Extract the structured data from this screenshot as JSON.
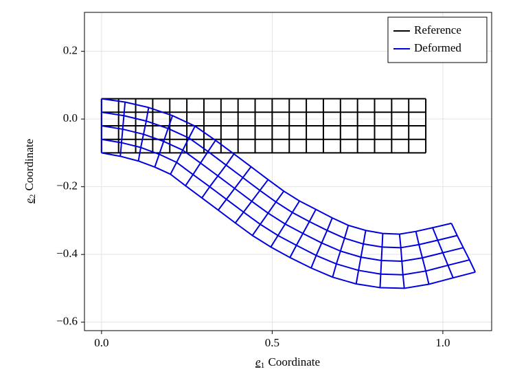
{
  "chart_data": {
    "type": "mesh",
    "x_label": {
      "symbol": "e",
      "subscript": "1",
      "text": "Coordinate"
    },
    "y_label": {
      "symbol": "e",
      "subscript": "2",
      "text": "Coordinate"
    },
    "xlim": [
      -0.05,
      1.143
    ],
    "ylim": [
      -0.625,
      0.315
    ],
    "xticks": [
      {
        "value": 0,
        "label": "0.0"
      },
      {
        "value": 0.5,
        "label": "0.5"
      },
      {
        "value": 1,
        "label": "1.0"
      }
    ],
    "yticks": [
      {
        "value": -0.6,
        "label": "−0.6"
      },
      {
        "value": -0.4,
        "label": "−0.4"
      },
      {
        "value": -0.2,
        "label": "−0.2"
      },
      {
        "value": 0,
        "label": "0.0"
      },
      {
        "value": 0.2,
        "label": "0.2"
      }
    ],
    "grid": true,
    "legend": "top-right",
    "series": [
      {
        "name": "Reference",
        "color": "#000000",
        "rows": [
          {
            "x": [
              0,
              0.05,
              0.1,
              0.15,
              0.2,
              0.25,
              0.3,
              0.35,
              0.4,
              0.45,
              0.5,
              0.55,
              0.6,
              0.65,
              0.7,
              0.75,
              0.8,
              0.85,
              0.9,
              0.95
            ],
            "y": [
              0.06,
              0.06,
              0.06,
              0.06,
              0.06,
              0.06,
              0.06,
              0.06,
              0.06,
              0.06,
              0.06,
              0.06,
              0.06,
              0.06,
              0.06,
              0.06,
              0.06,
              0.06,
              0.06,
              0.06
            ]
          },
          {
            "x": [
              0,
              0.05,
              0.1,
              0.15,
              0.2,
              0.25,
              0.3,
              0.35,
              0.4,
              0.45,
              0.5,
              0.55,
              0.6,
              0.65,
              0.7,
              0.75,
              0.8,
              0.85,
              0.9,
              0.95
            ],
            "y": [
              0.02,
              0.02,
              0.02,
              0.02,
              0.02,
              0.02,
              0.02,
              0.02,
              0.02,
              0.02,
              0.02,
              0.02,
              0.02,
              0.02,
              0.02,
              0.02,
              0.02,
              0.02,
              0.02,
              0.02
            ]
          },
          {
            "x": [
              0,
              0.05,
              0.1,
              0.15,
              0.2,
              0.25,
              0.3,
              0.35,
              0.4,
              0.45,
              0.5,
              0.55,
              0.6,
              0.65,
              0.7,
              0.75,
              0.8,
              0.85,
              0.9,
              0.95
            ],
            "y": [
              -0.02,
              -0.02,
              -0.02,
              -0.02,
              -0.02,
              -0.02,
              -0.02,
              -0.02,
              -0.02,
              -0.02,
              -0.02,
              -0.02,
              -0.02,
              -0.02,
              -0.02,
              -0.02,
              -0.02,
              -0.02,
              -0.02,
              -0.02
            ]
          },
          {
            "x": [
              0,
              0.05,
              0.1,
              0.15,
              0.2,
              0.25,
              0.3,
              0.35,
              0.4,
              0.45,
              0.5,
              0.55,
              0.6,
              0.65,
              0.7,
              0.75,
              0.8,
              0.85,
              0.9,
              0.95
            ],
            "y": [
              -0.06,
              -0.06,
              -0.06,
              -0.06,
              -0.06,
              -0.06,
              -0.06,
              -0.06,
              -0.06,
              -0.06,
              -0.06,
              -0.06,
              -0.06,
              -0.06,
              -0.06,
              -0.06,
              -0.06,
              -0.06,
              -0.06,
              -0.06
            ]
          },
          {
            "x": [
              0,
              0.05,
              0.1,
              0.15,
              0.2,
              0.25,
              0.3,
              0.35,
              0.4,
              0.45,
              0.5,
              0.55,
              0.6,
              0.65,
              0.7,
              0.75,
              0.8,
              0.85,
              0.9,
              0.95
            ],
            "y": [
              -0.1,
              -0.1,
              -0.1,
              -0.1,
              -0.1,
              -0.1,
              -0.1,
              -0.1,
              -0.1,
              -0.1,
              -0.1,
              -0.1,
              -0.1,
              -0.1,
              -0.1,
              -0.1,
              -0.1,
              -0.1,
              -0.1,
              -0.1
            ]
          }
        ]
      },
      {
        "name": "Deformed",
        "color": "#0000dd",
        "rows": [
          {
            "x": [
              0,
              0.069,
              0.138,
              0.208,
              0.274,
              0.334,
              0.388,
              0.438,
              0.488,
              0.534,
              0.58,
              0.628,
              0.676,
              0.723,
              0.774,
              0.824,
              0.873,
              0.921,
              0.97,
              1.025
            ],
            "y": [
              0.06,
              0.05,
              0.034,
              0.01,
              -0.021,
              -0.063,
              -0.103,
              -0.141,
              -0.179,
              -0.213,
              -0.242,
              -0.267,
              -0.292,
              -0.314,
              -0.329,
              -0.338,
              -0.34,
              -0.332,
              -0.321,
              -0.308
            ]
          },
          {
            "x": [
              0,
              0.0655,
              0.131,
              0.195,
              0.256,
              0.312,
              0.365,
              0.414,
              0.464,
              0.511,
              0.559,
              0.609,
              0.661,
              0.712,
              0.767,
              0.822,
              0.877,
              0.93,
              0.985,
              1.042
            ],
            "y": [
              0.02,
              0.0099,
              -0.006,
              -0.028,
              -0.056,
              -0.096,
              -0.136,
              -0.173,
              -0.211,
              -0.245,
              -0.276,
              -0.303,
              -0.329,
              -0.352,
              -0.369,
              -0.378,
              -0.38,
              -0.371,
              -0.358,
              -0.344
            ]
          },
          {
            "x": [
              0,
              0.062,
              0.123,
              0.182,
              0.238,
              0.29,
              0.341,
              0.39,
              0.44,
              0.488,
              0.538,
              0.59,
              0.645,
              0.7,
              0.76,
              0.82,
              0.88,
              0.94,
              1,
              1.06
            ],
            "y": [
              -0.02,
              -0.03,
              -0.045,
              -0.066,
              -0.092,
              -0.13,
              -0.168,
              -0.205,
              -0.243,
              -0.278,
              -0.31,
              -0.338,
              -0.366,
              -0.39,
              -0.408,
              -0.418,
              -0.42,
              -0.41,
              -0.395,
              -0.38
            ]
          },
          {
            "x": [
              0,
              0.0585,
              0.115,
              0.169,
              0.22,
              0.268,
              0.317,
              0.366,
              0.416,
              0.465,
              0.517,
              0.571,
              0.629,
              0.688,
              0.753,
              0.818,
              0.883,
              0.95,
              1.015,
              1.078
            ],
            "y": [
              -0.06,
              -0.0699,
              -0.084,
              -0.104,
              -0.128,
              -0.164,
              -0.2,
              -0.237,
              -0.275,
              -0.311,
              -0.344,
              -0.373,
              -0.403,
              -0.428,
              -0.447,
              -0.458,
              -0.46,
              -0.449,
              -0.432,
              -0.416
            ]
          },
          {
            "x": [
              0,
              0.055,
              0.108,
              0.156,
              0.202,
              0.246,
              0.294,
              0.342,
              0.392,
              0.442,
              0.496,
              0.552,
              0.614,
              0.677,
              0.746,
              0.816,
              0.887,
              0.959,
              1.03,
              1.095
            ],
            "y": [
              -0.1,
              -0.11,
              -0.124,
              -0.142,
              -0.163,
              -0.197,
              -0.233,
              -0.269,
              -0.307,
              -0.344,
              -0.378,
              -0.409,
              -0.44,
              -0.467,
              -0.487,
              -0.498,
              -0.5,
              -0.488,
              -0.469,
              -0.452
            ]
          }
        ]
      }
    ]
  }
}
